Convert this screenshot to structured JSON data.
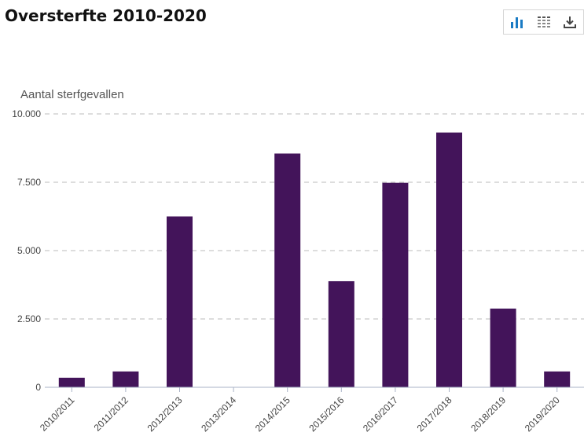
{
  "header": {
    "title": "Oversterfte 2010-2020"
  },
  "toolbar": {
    "icons": [
      "bar-chart-icon",
      "table-grid-icon",
      "download-icon"
    ]
  },
  "colors": {
    "bar": "#43145a",
    "accent": "#1a7bc4",
    "grid": "#bbbbbb",
    "axis": "#aab3c7"
  },
  "chart_data": {
    "type": "bar",
    "title": "",
    "xlabel": "",
    "ylabel": "Aantal sterfgevallen",
    "categories": [
      "2010/2011",
      "2011/2012",
      "2012/2013",
      "2013/2014",
      "2014/2015",
      "2015/2016",
      "2016/2017",
      "2017/2018",
      "2018/2019",
      "2019/2020"
    ],
    "values": [
      350,
      580,
      6250,
      0,
      8550,
      3880,
      7480,
      9320,
      2880,
      580
    ],
    "ylim": [
      0,
      10000
    ],
    "yticks": [
      0,
      2500,
      5000,
      7500,
      10000
    ],
    "ytick_labels": [
      "0",
      "2.500",
      "5.000",
      "7.500",
      "10.000"
    ],
    "grid": true,
    "legend": "none"
  }
}
